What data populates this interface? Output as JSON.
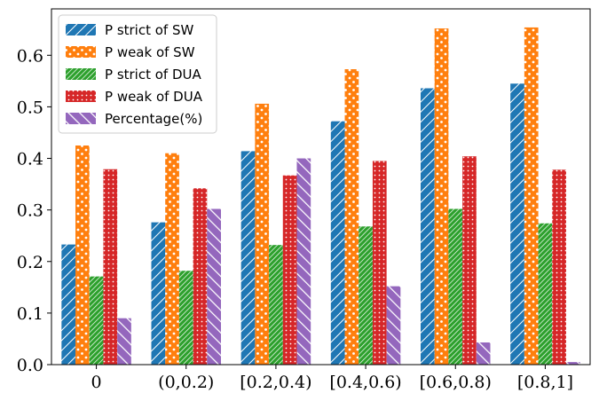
{
  "chart_data": {
    "type": "bar",
    "categories": [
      "0",
      "(0,0.2)",
      "[0.2,0.4)",
      "[0.4,0.6)",
      "[0.6,0.8)",
      "[0.8,1]"
    ],
    "series": [
      {
        "name": "P strict of SW",
        "color": "#1f77b4",
        "pattern": "diagonal-hatch",
        "values": [
          0.233,
          0.276,
          0.414,
          0.472,
          0.536,
          0.545
        ]
      },
      {
        "name": "P weak of SW",
        "color": "#ff7f0e",
        "pattern": "dots",
        "values": [
          0.425,
          0.41,
          0.506,
          0.573,
          0.652,
          0.654
        ]
      },
      {
        "name": "P strict of DUA",
        "color": "#2ca02c",
        "pattern": "dense-diagonal-hatch",
        "values": [
          0.171,
          0.182,
          0.232,
          0.268,
          0.302,
          0.274
        ]
      },
      {
        "name": "P weak of DUA",
        "color": "#d62728",
        "pattern": "small-dots",
        "values": [
          0.379,
          0.342,
          0.367,
          0.395,
          0.404,
          0.378
        ]
      },
      {
        "name": "Percentage(%)",
        "color": "#9467bd",
        "pattern": "back-diagonal-hatch",
        "values": [
          0.09,
          0.302,
          0.4,
          0.152,
          0.043,
          0.005
        ]
      }
    ],
    "y_ticks": [
      "0.0",
      "0.1",
      "0.2",
      "0.3",
      "0.4",
      "0.5",
      "0.6"
    ],
    "ylim": [
      0,
      0.69
    ],
    "grid": false,
    "legend_position": "top-left"
  }
}
